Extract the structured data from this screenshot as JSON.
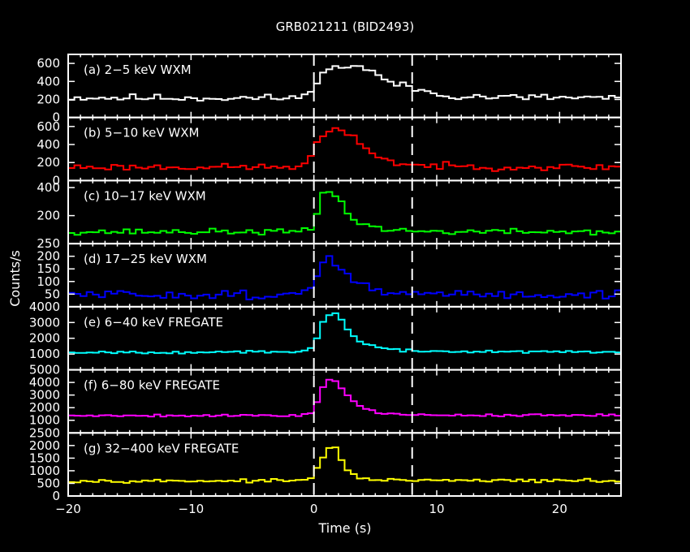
{
  "chart_data": {
    "type": "line",
    "title": "GRB021211 (BID2493)",
    "xlabel": "Time (s)",
    "ylabel": "Counts/s",
    "xlim": [
      -20,
      25
    ],
    "x_ticks": [
      -20,
      -10,
      0,
      10,
      20
    ],
    "x_tick_labels": [
      "−20",
      "−10",
      "0",
      "10",
      "20"
    ],
    "markers": [
      0,
      8
    ],
    "grid": false,
    "background": "#000000",
    "panels": [
      {
        "label": "(a) 2−5 keV WXM",
        "color": "#ffffff",
        "ylim": [
          0,
          700
        ],
        "yticks": [
          0,
          200,
          400,
          600
        ],
        "ytick_labels": [
          "0",
          "200",
          "400",
          "600"
        ],
        "series": {
          "t": [
            -20,
            -2,
            -0.5,
            0,
            0.5,
            1.5,
            2.5,
            3.5,
            4.5,
            5.5,
            6.5,
            7.5,
            8.5,
            10,
            12,
            15,
            20,
            25
          ],
          "v": [
            220,
            215,
            230,
            380,
            480,
            540,
            570,
            580,
            520,
            440,
            380,
            340,
            310,
            260,
            235,
            225,
            220,
            220
          ],
          "noise": 28,
          "seed": 11
        }
      },
      {
        "label": "(b) 5−10 keV WXM",
        "color": "#ff0000",
        "ylim": [
          0,
          700
        ],
        "yticks": [
          0,
          200,
          400,
          600
        ],
        "ytick_labels": [
          "0",
          "200",
          "400",
          "600"
        ],
        "series": {
          "t": [
            -20,
            -2,
            -0.5,
            0,
            0.5,
            1.5,
            2.5,
            3.5,
            4.5,
            5.5,
            6.5,
            7.5,
            8.5,
            10,
            15,
            25
          ],
          "v": [
            150,
            150,
            170,
            370,
            470,
            560,
            530,
            450,
            340,
            250,
            200,
            180,
            170,
            160,
            150,
            150
          ],
          "noise": 25,
          "seed": 23
        }
      },
      {
        "label": "(c) 10−17 keV WXM",
        "color": "#00ff00",
        "ylim": [
          0,
          450
        ],
        "yticks": [
          200,
          400
        ],
        "ytick_labels": [
          "200",
          "400"
        ],
        "series": {
          "t": [
            -20,
            -1,
            0,
            0.5,
            1,
            1.5,
            2,
            3,
            4,
            5,
            6,
            8,
            10,
            25
          ],
          "v": [
            85,
            85,
            100,
            330,
            390,
            370,
            320,
            190,
            140,
            115,
            100,
            90,
            85,
            85
          ],
          "noise": 14,
          "seed": 37
        }
      },
      {
        "label": "(d) 17−25 keV WXM",
        "color": "#0000ff",
        "ylim": [
          0,
          250
        ],
        "yticks": [
          50,
          100,
          150,
          200,
          250
        ],
        "ytick_labels": [
          "50",
          "100",
          "150",
          "200",
          "250"
        ],
        "series": {
          "t": [
            -20,
            -1,
            0,
            0.5,
            1,
            1.5,
            2,
            3,
            4,
            5,
            6,
            8,
            25
          ],
          "v": [
            48,
            48,
            80,
            145,
            195,
            185,
            160,
            115,
            85,
            65,
            55,
            50,
            48
          ],
          "noise": 12,
          "seed": 51
        }
      },
      {
        "label": "(e) 6−40 keV FREGATE",
        "color": "#00ffff",
        "ylim": [
          0,
          4000
        ],
        "yticks": [
          1000,
          2000,
          3000,
          4000
        ],
        "ytick_labels": [
          "1000",
          "2000",
          "3000",
          "4000"
        ],
        "series": {
          "t": [
            -20,
            -1,
            0,
            0.5,
            1,
            1.5,
            2,
            2.5,
            3,
            4,
            5,
            6,
            8,
            25
          ],
          "v": [
            1120,
            1120,
            1400,
            2700,
            3400,
            3650,
            3400,
            2900,
            2300,
            1700,
            1450,
            1300,
            1180,
            1120
          ],
          "noise": 55,
          "seed": 67
        }
      },
      {
        "label": "(f) 6−80 keV FREGATE",
        "color": "#ff00ff",
        "ylim": [
          0,
          5000
        ],
        "yticks": [
          1000,
          2000,
          3000,
          4000,
          5000
        ],
        "ytick_labels": [
          "1000",
          "2000",
          "3000",
          "4000",
          "5000"
        ],
        "series": {
          "t": [
            -20,
            -1,
            0,
            0.5,
            1,
            1.5,
            2,
            3,
            4,
            5,
            6,
            8,
            25
          ],
          "v": [
            1380,
            1380,
            1700,
            3200,
            4100,
            4300,
            3900,
            2700,
            2000,
            1650,
            1500,
            1420,
            1380
          ],
          "noise": 65,
          "seed": 79
        }
      },
      {
        "label": "(g) 32−400 keV FREGATE",
        "color": "#ffff00",
        "ylim": [
          0,
          2500
        ],
        "yticks": [
          0,
          500,
          1000,
          1500,
          2000,
          2500
        ],
        "ytick_labels": [
          "0",
          "500",
          "1000",
          "1500",
          "2000",
          "2500"
        ],
        "series": {
          "t": [
            -20,
            -1,
            0,
            0.5,
            1,
            1.5,
            2,
            2.5,
            3,
            4,
            5,
            6,
            25
          ],
          "v": [
            600,
            600,
            800,
            1350,
            1750,
            2050,
            1700,
            1150,
            850,
            700,
            650,
            620,
            600
          ],
          "noise": 40,
          "seed": 97
        }
      }
    ]
  }
}
